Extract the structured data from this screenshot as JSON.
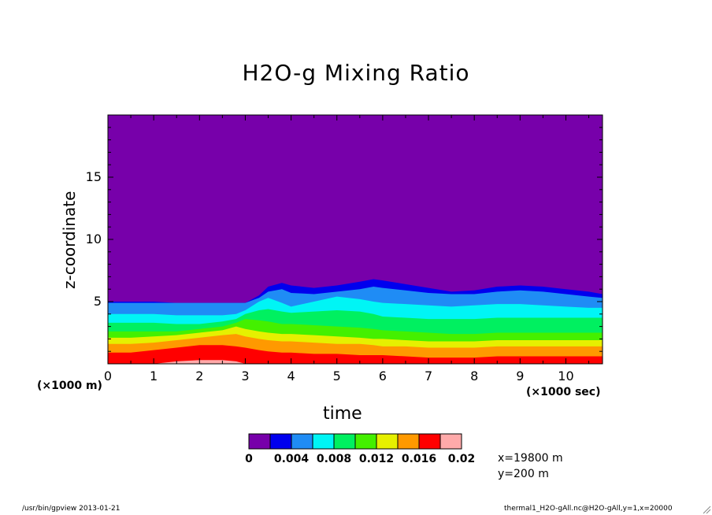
{
  "chart_data": {
    "type": "heatmap",
    "title": "H2O-g Mixing Ratio",
    "xlabel": "time",
    "ylabel": "z-coordinate",
    "x_unit_note": "(×1000 sec)",
    "y_unit_note": "(×1000 m)",
    "xlim": [
      0,
      10.8
    ],
    "ylim": [
      0,
      20
    ],
    "x_ticks": [
      "0",
      "1",
      "2",
      "3",
      "4",
      "5",
      "6",
      "7",
      "8",
      "9",
      "10"
    ],
    "y_ticks": [
      "5",
      "10",
      "15"
    ],
    "levels": [
      0,
      0.002,
      0.004,
      0.006,
      0.008,
      0.01,
      0.012,
      0.014,
      0.016,
      0.018,
      0.02
    ],
    "colorbar_labels": [
      "0",
      "0.004",
      "0.008",
      "0.012",
      "0.016",
      "0.02"
    ],
    "colors": [
      "#7700aa",
      "#0000ee",
      "#1f8cf5",
      "#00f5f5",
      "#00f060",
      "#44f000",
      "#e6f000",
      "#ff9900",
      "#ff0000",
      "#ffaaaa"
    ],
    "contours": {
      "x": [
        0,
        0.5,
        1,
        1.5,
        2,
        2.5,
        2.8,
        3,
        3.3,
        3.5,
        3.8,
        4,
        4.5,
        5,
        5.5,
        5.8,
        6,
        6.5,
        7,
        7.5,
        8,
        8.5,
        9,
        9.5,
        10,
        10.5,
        10.8
      ],
      "z_top": [
        [
          5.0,
          5.0,
          5.0,
          4.9,
          4.9,
          4.9,
          4.9,
          4.9,
          5.5,
          6.2,
          6.5,
          6.3,
          6.1,
          6.3,
          6.6,
          6.8,
          6.7,
          6.4,
          6.1,
          5.8,
          5.9,
          6.2,
          6.3,
          6.2,
          6.0,
          5.8,
          5.6
        ],
        [
          4.9,
          4.9,
          4.9,
          4.9,
          4.9,
          4.9,
          4.9,
          4.9,
          5.3,
          5.8,
          6.0,
          5.7,
          5.6,
          5.8,
          6.0,
          6.2,
          6.1,
          5.9,
          5.7,
          5.6,
          5.6,
          5.8,
          5.9,
          5.8,
          5.6,
          5.4,
          5.3
        ],
        [
          4.0,
          4.0,
          4.0,
          3.9,
          3.9,
          3.9,
          4.0,
          4.3,
          5.0,
          5.3,
          4.9,
          4.6,
          5.0,
          5.4,
          5.2,
          5.0,
          4.9,
          4.8,
          4.7,
          4.6,
          4.7,
          4.8,
          4.8,
          4.7,
          4.6,
          4.5,
          4.5
        ],
        [
          3.3,
          3.3,
          3.3,
          3.2,
          3.2,
          3.4,
          3.6,
          4.0,
          4.3,
          4.4,
          4.2,
          4.1,
          4.2,
          4.3,
          4.2,
          4.0,
          3.8,
          3.7,
          3.6,
          3.6,
          3.6,
          3.7,
          3.7,
          3.7,
          3.7,
          3.7,
          3.7
        ],
        [
          2.6,
          2.6,
          2.6,
          2.6,
          2.8,
          3.0,
          3.3,
          3.6,
          3.5,
          3.4,
          3.2,
          3.2,
          3.1,
          3.0,
          2.9,
          2.8,
          2.7,
          2.6,
          2.5,
          2.4,
          2.4,
          2.5,
          2.5,
          2.5,
          2.5,
          2.5,
          2.5
        ],
        [
          2.1,
          2.1,
          2.2,
          2.3,
          2.5,
          2.7,
          3.0,
          2.8,
          2.6,
          2.5,
          2.4,
          2.4,
          2.3,
          2.2,
          2.1,
          2.0,
          2.0,
          1.9,
          1.8,
          1.8,
          1.8,
          1.9,
          1.9,
          1.9,
          1.9,
          1.9,
          1.9
        ],
        [
          1.6,
          1.6,
          1.7,
          1.9,
          2.1,
          2.3,
          2.4,
          2.2,
          2.0,
          1.9,
          1.8,
          1.8,
          1.7,
          1.6,
          1.6,
          1.5,
          1.4,
          1.4,
          1.3,
          1.3,
          1.3,
          1.4,
          1.4,
          1.4,
          1.4,
          1.4,
          1.4
        ],
        [
          0.9,
          0.9,
          1.1,
          1.3,
          1.5,
          1.5,
          1.4,
          1.3,
          1.1,
          1.0,
          0.9,
          0.9,
          0.8,
          0.8,
          0.7,
          0.7,
          0.7,
          0.6,
          0.5,
          0.5,
          0.5,
          0.6,
          0.6,
          0.6,
          0.6,
          0.6,
          0.6
        ],
        [
          0.0,
          0.0,
          0.0,
          0.2,
          0.3,
          0.3,
          0.2,
          0.0,
          0.0,
          0.0,
          0.0,
          0.0,
          0.0,
          0.0,
          0.0,
          0.0,
          0.0,
          0.0,
          0.0,
          0.0,
          0.0,
          0.0,
          0.0,
          0.0,
          0.0,
          0.0,
          0.0
        ]
      ]
    }
  },
  "annotations": {
    "x_location": "x=19800 m",
    "y_location": "y=200 m",
    "footer_left": "/usr/bin/gpview  2013-01-21",
    "footer_right": "thermal1_H2O-gAll.nc@H2O-gAll,y=1,x=20000"
  }
}
